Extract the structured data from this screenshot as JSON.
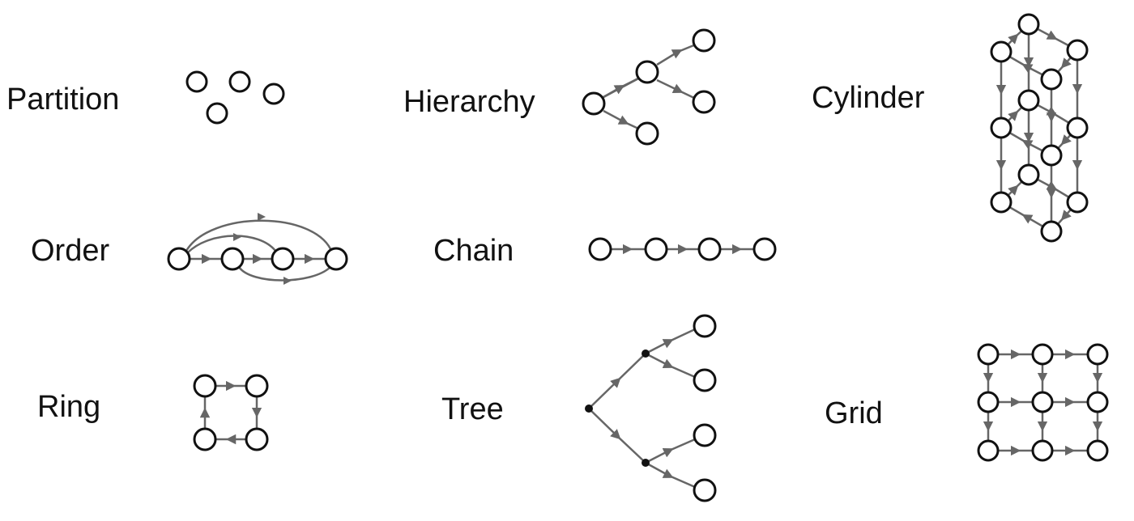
{
  "labels": {
    "partition": "Partition",
    "hierarchy": "Hierarchy",
    "cylinder": "Cylinder",
    "order": "Order",
    "chain": "Chain",
    "ring": "Ring",
    "tree": "Tree",
    "grid": "Grid"
  },
  "colors": {
    "node_stroke": "#111111",
    "node_fill": "#ffffff",
    "edge": "#666666",
    "arrow": "#666666"
  }
}
